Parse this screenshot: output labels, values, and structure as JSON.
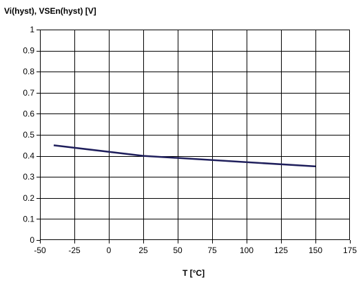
{
  "chart_data": {
    "type": "line",
    "title": "",
    "ylabel": "Vi(hyst), VSEn(hyst) [V]",
    "xlabel": "T [°C]",
    "xlim": [
      -50,
      175
    ],
    "ylim": [
      0,
      1
    ],
    "x_ticks": [
      -50,
      -25,
      0,
      25,
      50,
      75,
      100,
      125,
      150,
      175
    ],
    "x_tick_labels": [
      "-50",
      "-25",
      "0",
      "25",
      "50",
      "75",
      "100",
      "125",
      "150",
      "175"
    ],
    "y_ticks": [
      0,
      0.1,
      0.2,
      0.3,
      0.4,
      0.5,
      0.6,
      0.7,
      0.8,
      0.9,
      1
    ],
    "y_tick_labels": [
      "0",
      "0.1",
      "0.2",
      "0.3",
      "0.4",
      "0.5",
      "0.6",
      "0.7",
      "0.8",
      "0.9",
      "1"
    ],
    "grid": true,
    "legend": "none",
    "series": [
      {
        "x": [
          -40,
          25,
          150
        ],
        "y": [
          0.45,
          0.4,
          0.35
        ],
        "color": "#1f1f5c"
      }
    ]
  }
}
